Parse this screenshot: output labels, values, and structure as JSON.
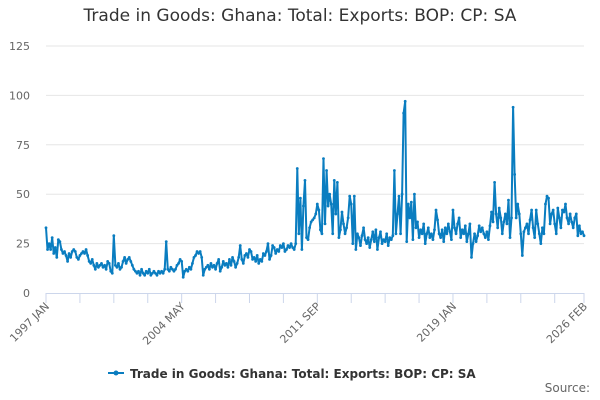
{
  "chart_data": {
    "type": "line",
    "title": "Trade in Goods: Ghana: Total: Exports: BOP: CP: SA",
    "source_label": "Source:",
    "xlabel": "",
    "ylabel": "",
    "x_start": "1997-01",
    "x_frequency": "monthly",
    "x_tick_labels": [
      "1997 JAN",
      "2004 MAY",
      "2011 SEP",
      "2019 JAN",
      "2026 FEB"
    ],
    "y_ticks": [
      0,
      25,
      50,
      75,
      100,
      125
    ],
    "ylim": [
      0,
      125
    ],
    "grid": true,
    "legend_position": "bottom",
    "color": "#0a7dc0",
    "series": [
      {
        "name": "Trade in Goods: Ghana: Total: Exports: BOP: CP: SA",
        "values": [
          33,
          22,
          25,
          22,
          28,
          20,
          23,
          18,
          27,
          26,
          22,
          20,
          21,
          19,
          16,
          20,
          18,
          21,
          22,
          21,
          18,
          17,
          19,
          20,
          21,
          20,
          22,
          19,
          16,
          15,
          17,
          14,
          12,
          15,
          13,
          14,
          15,
          13,
          14,
          12,
          16,
          15,
          11,
          10,
          29,
          14,
          13,
          15,
          12,
          13,
          16,
          18,
          15,
          17,
          18,
          16,
          14,
          12,
          11,
          10,
          11,
          9,
          12,
          10,
          9,
          11,
          10,
          12,
          9,
          10,
          11,
          10,
          9,
          11,
          10,
          11,
          10,
          12,
          26,
          12,
          11,
          13,
          12,
          11,
          12,
          14,
          15,
          17,
          16,
          8,
          11,
          12,
          11,
          13,
          12,
          15,
          18,
          19,
          21,
          20,
          21,
          18,
          9,
          12,
          13,
          14,
          12,
          15,
          13,
          14,
          12,
          15,
          17,
          11,
          13,
          16,
          14,
          15,
          13,
          17,
          14,
          18,
          16,
          13,
          15,
          18,
          24,
          17,
          15,
          19,
          20,
          18,
          22,
          21,
          17,
          18,
          16,
          19,
          15,
          17,
          16,
          20,
          19,
          21,
          25,
          17,
          19,
          24,
          23,
          20,
          22,
          21,
          24,
          23,
          25,
          21,
          22,
          24,
          23,
          25,
          23,
          22,
          25,
          63,
          30,
          48,
          22,
          44,
          57,
          28,
          27,
          33,
          36,
          37,
          38,
          40,
          45,
          42,
          32,
          30,
          68,
          35,
          62,
          44,
          50,
          45,
          30,
          57,
          40,
          56,
          28,
          32,
          41,
          35,
          30,
          33,
          38,
          49,
          45,
          25,
          49,
          22,
          30,
          28,
          24,
          29,
          33,
          27,
          25,
          28,
          23,
          27,
          31,
          26,
          32,
          22,
          28,
          31,
          25,
          27,
          26,
          30,
          24,
          28,
          27,
          29,
          62,
          30,
          40,
          49,
          30,
          50,
          91,
          97,
          26,
          45,
          38,
          46,
          27,
          50,
          33,
          36,
          28,
          32,
          30,
          35,
          25,
          30,
          33,
          28,
          30,
          27,
          32,
          42,
          37,
          30,
          28,
          32,
          26,
          33,
          30,
          35,
          31,
          27,
          42,
          33,
          30,
          35,
          38,
          28,
          32,
          30,
          34,
          26,
          30,
          35,
          18,
          25,
          30,
          26,
          29,
          34,
          31,
          33,
          30,
          28,
          31,
          27,
          34,
          41,
          36,
          56,
          40,
          33,
          43,
          38,
          30,
          36,
          40,
          35,
          47,
          28,
          38,
          94,
          60,
          38,
          45,
          40,
          30,
          19,
          31,
          33,
          35,
          30,
          37,
          42,
          33,
          28,
          42,
          35,
          30,
          25,
          33,
          30,
          45,
          49,
          48,
          35,
          40,
          42,
          35,
          30,
          43,
          38,
          33,
          42,
          41,
          45,
          38,
          35,
          40,
          36,
          33,
          38,
          40,
          29,
          34,
          30,
          31,
          29
        ]
      }
    ]
  }
}
